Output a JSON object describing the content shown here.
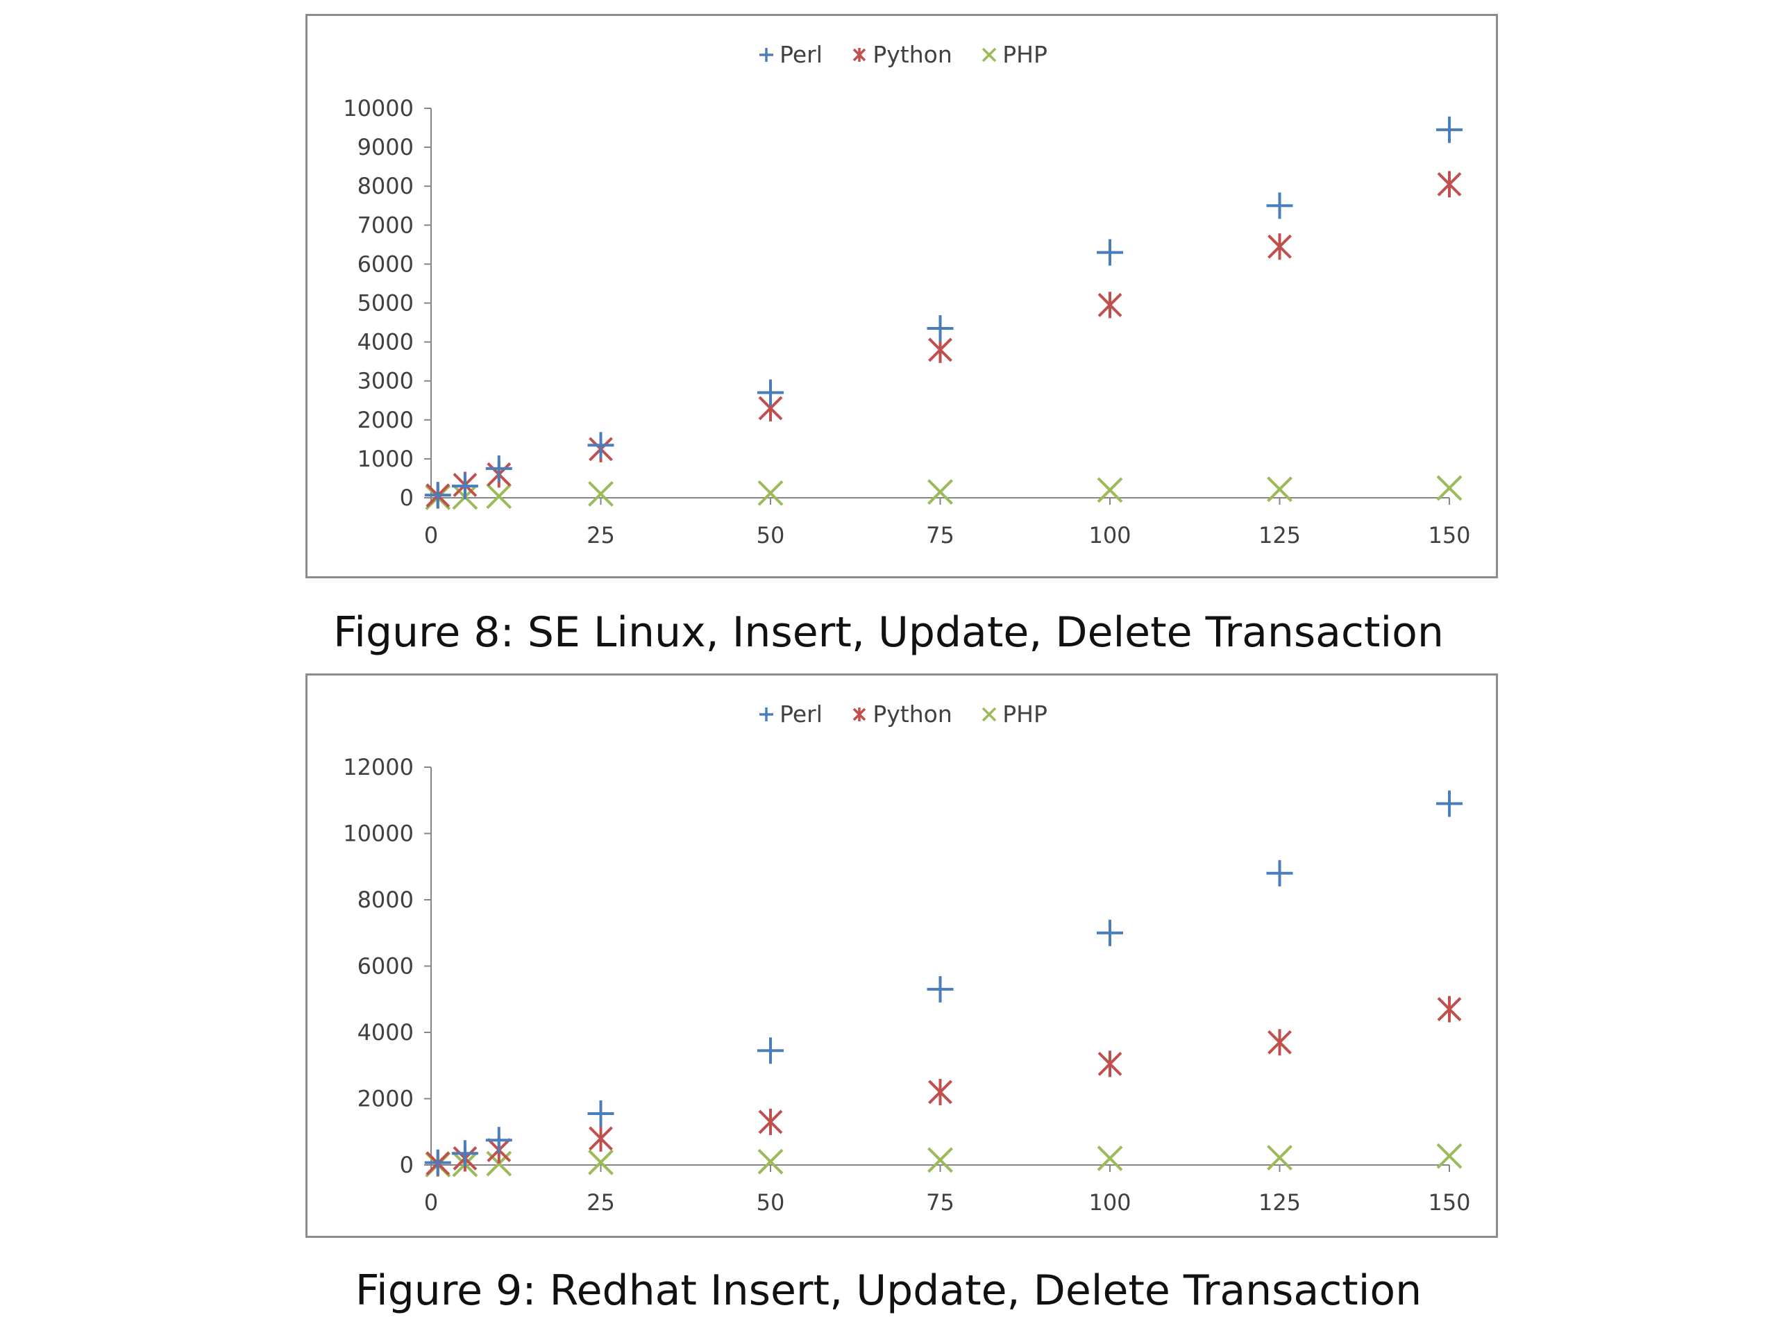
{
  "colors": {
    "perl": "#4a7ebb",
    "python": "#c0504d",
    "php": "#9bbb59",
    "axis": "#868686",
    "frame": "#8c8c8c"
  },
  "figures": [
    {
      "caption": "Figure 8: SE Linux, Insert, Update, Delete Transaction",
      "legend": [
        "Perl",
        "Python",
        "PHP"
      ]
    },
    {
      "caption": "Figure 9: Redhat Insert, Update, Delete Transaction",
      "legend": [
        "Perl",
        "Python",
        "PHP"
      ]
    }
  ],
  "chart_data": [
    {
      "type": "scatter",
      "title": "",
      "xlabel": "",
      "ylabel": "",
      "xlim": [
        0,
        150
      ],
      "ylim": [
        0,
        10000
      ],
      "xticks": [
        0,
        25,
        50,
        75,
        100,
        125,
        150
      ],
      "yticks": [
        0,
        1000,
        2000,
        3000,
        4000,
        5000,
        6000,
        7000,
        8000,
        9000,
        10000
      ],
      "legend_position": "top",
      "grid": false,
      "series": [
        {
          "name": "Perl",
          "marker": "plus",
          "points": [
            [
              1,
              70
            ],
            [
              5,
              300
            ],
            [
              10,
              750
            ],
            [
              25,
              1350
            ],
            [
              50,
              2700
            ],
            [
              75,
              4350
            ],
            [
              100,
              6300
            ],
            [
              125,
              7500
            ],
            [
              150,
              9450
            ]
          ]
        },
        {
          "name": "Python",
          "marker": "star",
          "points": [
            [
              1,
              60
            ],
            [
              5,
              330
            ],
            [
              10,
              600
            ],
            [
              25,
              1250
            ],
            [
              50,
              2300
            ],
            [
              75,
              3800
            ],
            [
              100,
              4950
            ],
            [
              125,
              6450
            ],
            [
              150,
              8050
            ]
          ]
        },
        {
          "name": "PHP",
          "marker": "x",
          "points": [
            [
              1,
              10
            ],
            [
              5,
              20
            ],
            [
              10,
              40
            ],
            [
              25,
              100
            ],
            [
              50,
              120
            ],
            [
              75,
              150
            ],
            [
              100,
              200
            ],
            [
              125,
              220
            ],
            [
              150,
              250
            ]
          ]
        }
      ]
    },
    {
      "type": "scatter",
      "title": "",
      "xlabel": "",
      "ylabel": "",
      "xlim": [
        0,
        150
      ],
      "ylim": [
        0,
        12000
      ],
      "xticks": [
        0,
        25,
        50,
        75,
        100,
        125,
        150
      ],
      "yticks": [
        0,
        2000,
        4000,
        6000,
        8000,
        10000,
        12000
      ],
      "legend_position": "top",
      "grid": false,
      "series": [
        {
          "name": "Perl",
          "marker": "plus",
          "points": [
            [
              1,
              70
            ],
            [
              5,
              350
            ],
            [
              10,
              750
            ],
            [
              25,
              1550
            ],
            [
              50,
              3450
            ],
            [
              75,
              5300
            ],
            [
              100,
              7000
            ],
            [
              125,
              8800
            ],
            [
              150,
              10900
            ]
          ]
        },
        {
          "name": "Python",
          "marker": "star",
          "points": [
            [
              1,
              50
            ],
            [
              5,
              200
            ],
            [
              10,
              450
            ],
            [
              25,
              800
            ],
            [
              50,
              1300
            ],
            [
              75,
              2200
            ],
            [
              100,
              3050
            ],
            [
              125,
              3700
            ],
            [
              150,
              4700
            ]
          ]
        },
        {
          "name": "PHP",
          "marker": "x",
          "points": [
            [
              1,
              10
            ],
            [
              5,
              20
            ],
            [
              10,
              40
            ],
            [
              25,
              80
            ],
            [
              50,
              100
            ],
            [
              75,
              150
            ],
            [
              100,
              200
            ],
            [
              125,
              220
            ],
            [
              150,
              270
            ]
          ]
        }
      ]
    }
  ]
}
